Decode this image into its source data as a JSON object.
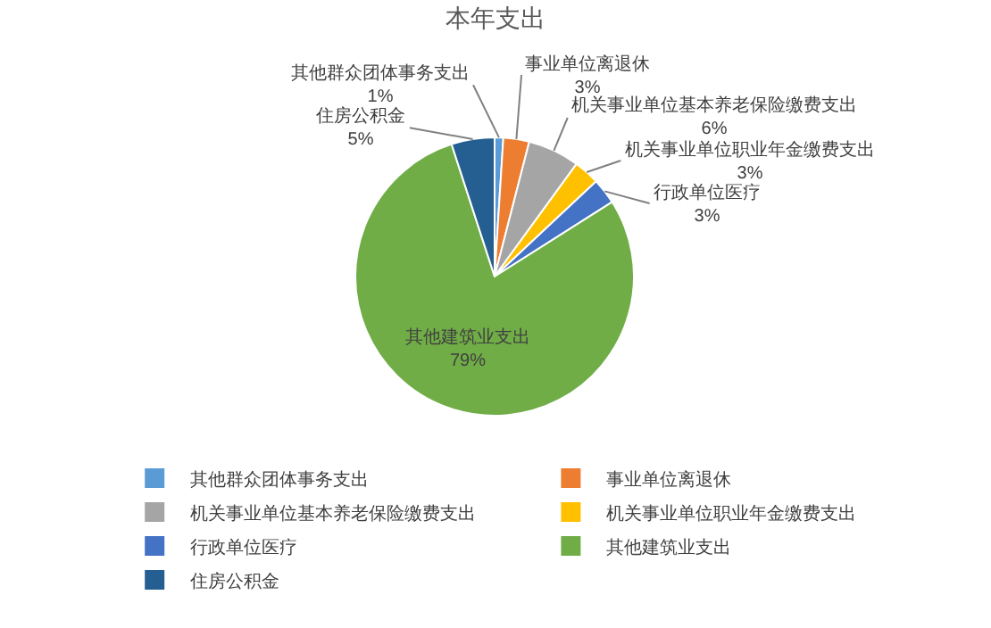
{
  "chart_data": {
    "type": "pie",
    "title": "本年支出",
    "categories": [
      "其他群众团体事务支出",
      "事业单位离退休",
      "机关事业单位基本养老保险缴费支出",
      "机关事业单位职业年金缴费支出",
      "行政单位医疗",
      "其他建筑业支出",
      "住房公积金"
    ],
    "values": [
      1,
      3,
      6,
      3,
      3,
      79,
      5
    ],
    "value_labels": [
      "1%",
      "3%",
      "6%",
      "3%",
      "3%",
      "79%",
      "5%"
    ],
    "colors": [
      "#5b9bd5",
      "#ed7d31",
      "#a5a5a5",
      "#ffc000",
      "#4472c4",
      "#70ad47",
      "#255e91"
    ],
    "legend": "bottom"
  }
}
